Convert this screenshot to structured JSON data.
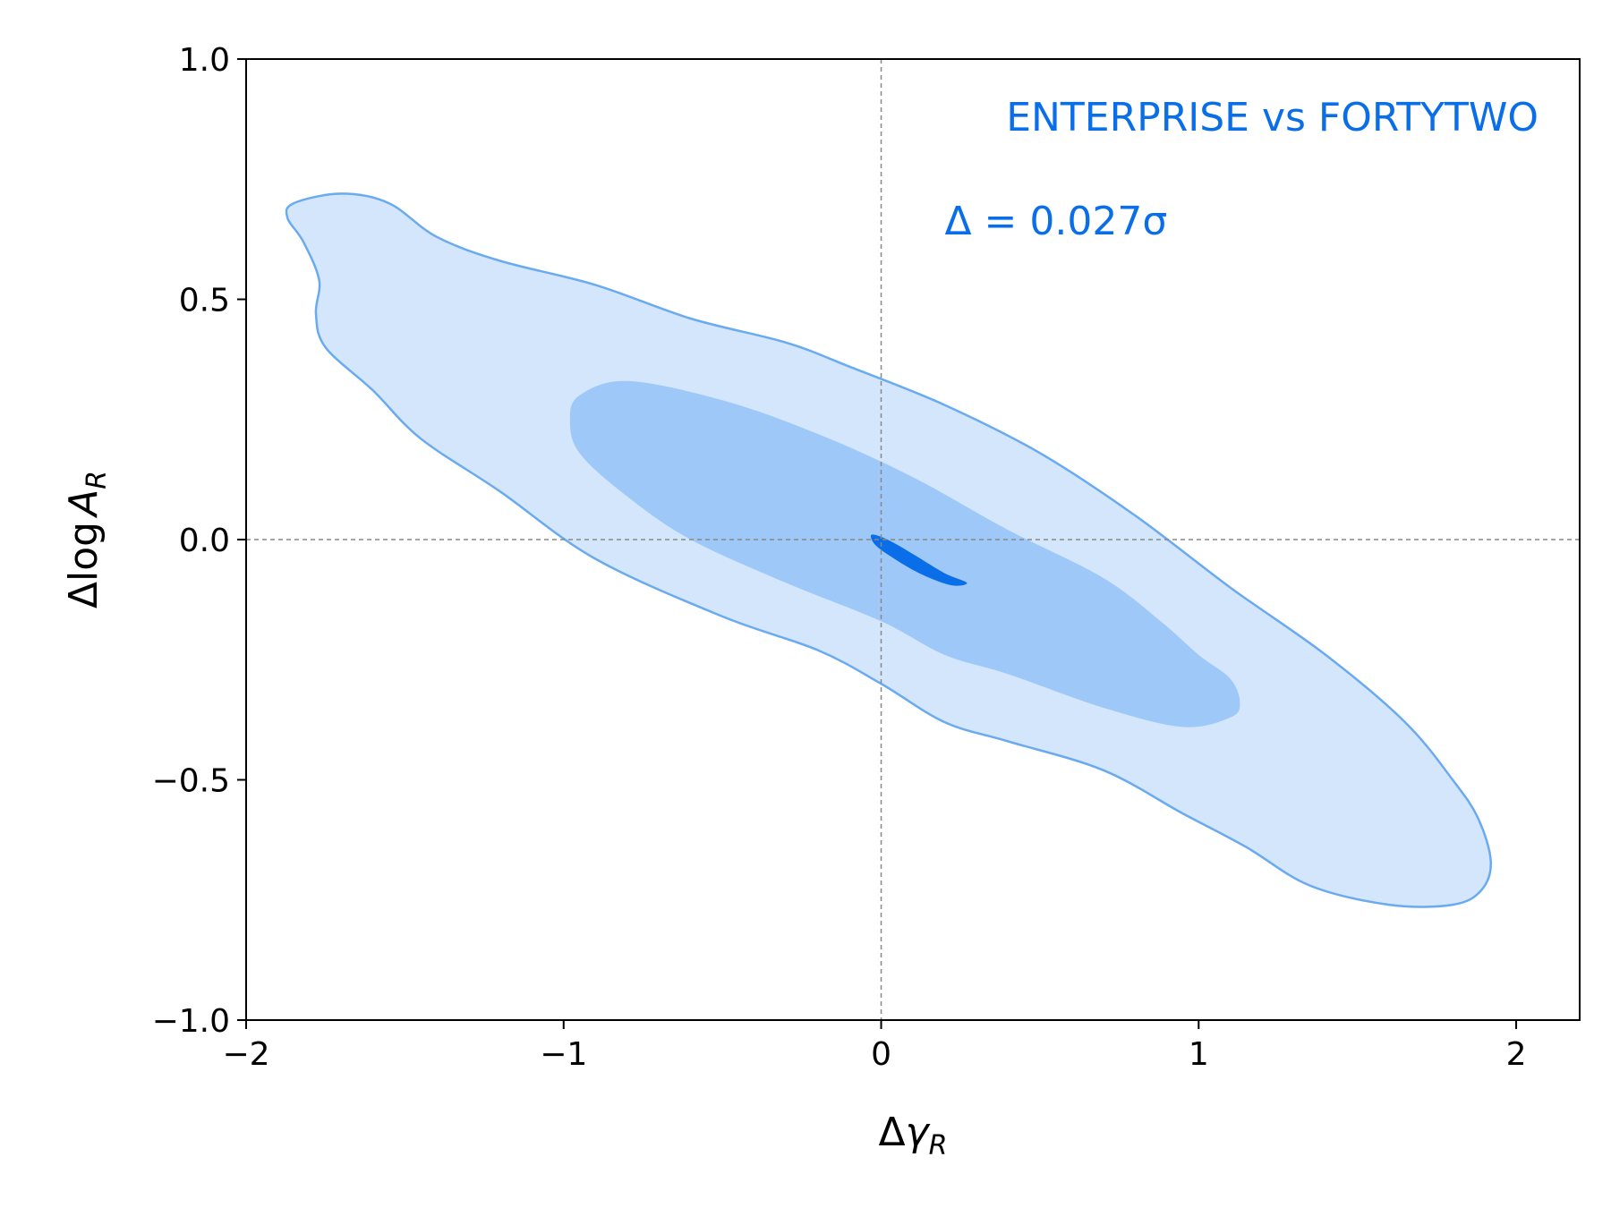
{
  "chart_data": {
    "type": "contour",
    "xlabel": {
      "prefix": "Δ",
      "symbol": "γ",
      "subscript": "R"
    },
    "ylabel": {
      "prefix": "Δlog",
      "symbol": "A",
      "subscript": "R"
    },
    "xlim": [
      -2,
      2.2
    ],
    "ylim": [
      -1.0,
      1.0
    ],
    "xticks": [
      {
        "value": -2,
        "label": "−2"
      },
      {
        "value": -1,
        "label": "−1"
      },
      {
        "value": 0,
        "label": "0"
      },
      {
        "value": 1,
        "label": "1"
      },
      {
        "value": 2,
        "label": "2"
      }
    ],
    "yticks": [
      {
        "value": -1.0,
        "label": "−1.0"
      },
      {
        "value": -0.5,
        "label": "−0.5"
      },
      {
        "value": 0.0,
        "label": "0.0"
      },
      {
        "value": 0.5,
        "label": "0.5"
      },
      {
        "value": 1.0,
        "label": "1.0"
      }
    ],
    "reference_lines": {
      "x": 0,
      "y": 0
    },
    "annotations": {
      "comparison": "ENTERPRISE vs FORTYTWO",
      "delta_text": "Δ = 0.027σ"
    },
    "colors": {
      "outer_fill": "#d4e6fb",
      "outer_edge": "#6aaaf0",
      "middle_fill": "#9ec8f7",
      "inner_fill": "#0a6ee8",
      "annotation": "#0a6ee8"
    },
    "contours": {
      "outer": [
        [
          -1.85,
          0.7
        ],
        [
          -1.7,
          0.72
        ],
        [
          -1.55,
          0.7
        ],
        [
          -1.4,
          0.63
        ],
        [
          -1.2,
          0.58
        ],
        [
          -0.9,
          0.53
        ],
        [
          -0.6,
          0.46
        ],
        [
          -0.3,
          0.41
        ],
        [
          -0.1,
          0.36
        ],
        [
          0.2,
          0.28
        ],
        [
          0.5,
          0.18
        ],
        [
          0.8,
          0.05
        ],
        [
          1.1,
          -0.1
        ],
        [
          1.4,
          -0.24
        ],
        [
          1.65,
          -0.38
        ],
        [
          1.8,
          -0.5
        ],
        [
          1.88,
          -0.58
        ],
        [
          1.92,
          -0.67
        ],
        [
          1.89,
          -0.73
        ],
        [
          1.8,
          -0.76
        ],
        [
          1.6,
          -0.76
        ],
        [
          1.35,
          -0.72
        ],
        [
          1.15,
          -0.64
        ],
        [
          0.95,
          -0.57
        ],
        [
          0.7,
          -0.48
        ],
        [
          0.4,
          -0.42
        ],
        [
          0.2,
          -0.38
        ],
        [
          0.0,
          -0.3
        ],
        [
          -0.2,
          -0.23
        ],
        [
          -0.5,
          -0.16
        ],
        [
          -0.9,
          -0.04
        ],
        [
          -1.2,
          0.1
        ],
        [
          -1.45,
          0.21
        ],
        [
          -1.6,
          0.31
        ],
        [
          -1.75,
          0.4
        ],
        [
          -1.78,
          0.47
        ],
        [
          -1.77,
          0.54
        ],
        [
          -1.82,
          0.62
        ],
        [
          -1.87,
          0.67
        ]
      ],
      "middle": [
        [
          -0.98,
          0.25
        ],
        [
          -0.95,
          0.3
        ],
        [
          -0.8,
          0.33
        ],
        [
          -0.5,
          0.29
        ],
        [
          -0.2,
          0.22
        ],
        [
          0.1,
          0.13
        ],
        [
          0.4,
          0.02
        ],
        [
          0.7,
          -0.08
        ],
        [
          0.88,
          -0.17
        ],
        [
          1.0,
          -0.24
        ],
        [
          1.1,
          -0.29
        ],
        [
          1.13,
          -0.34
        ],
        [
          1.1,
          -0.37
        ],
        [
          0.95,
          -0.39
        ],
        [
          0.7,
          -0.35
        ],
        [
          0.4,
          -0.28
        ],
        [
          0.2,
          -0.24
        ],
        [
          0.0,
          -0.17
        ],
        [
          -0.3,
          -0.09
        ],
        [
          -0.6,
          0.0
        ],
        [
          -0.8,
          0.09
        ],
        [
          -0.95,
          0.18
        ]
      ],
      "inner": [
        [
          -0.03,
          0.01
        ],
        [
          0.02,
          0.0
        ],
        [
          0.1,
          -0.03
        ],
        [
          0.2,
          -0.07
        ],
        [
          0.27,
          -0.09
        ],
        [
          0.22,
          -0.095
        ],
        [
          0.12,
          -0.07
        ],
        [
          0.03,
          -0.035
        ],
        [
          -0.02,
          -0.01
        ]
      ]
    }
  }
}
